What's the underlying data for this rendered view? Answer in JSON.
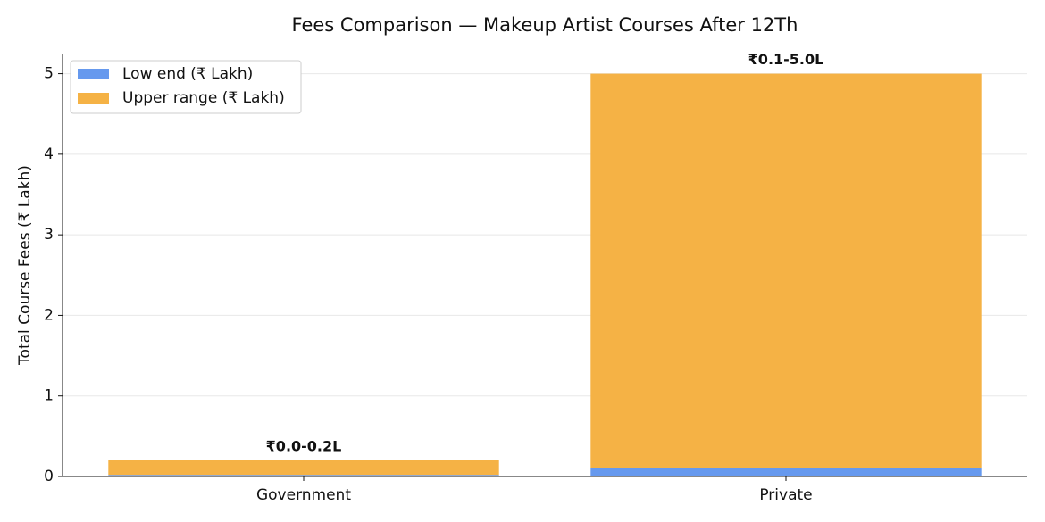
{
  "chart_data": {
    "type": "stacked_bar",
    "title": "Fees Comparison — Makeup Artist Courses After 12Th",
    "y_label": "Total Course Fees (₹ Lakh)",
    "categories": [
      "Government",
      "Private"
    ],
    "series": [
      {
        "name": "Low end (₹ Lakh)",
        "color": "#6699ee",
        "values": [
          0.02,
          0.1
        ]
      },
      {
        "name": "Upper range (₹ Lakh)",
        "color": "#f5b245",
        "values": [
          0.18,
          4.9
        ]
      }
    ],
    "annotations": [
      "₹0.0-0.2L",
      "₹0.1-5.0L"
    ],
    "ylim": [
      0,
      5.25
    ],
    "yticks": [
      0,
      1,
      2,
      3,
      4,
      5
    ],
    "grid": true,
    "legend": "upper-left"
  }
}
